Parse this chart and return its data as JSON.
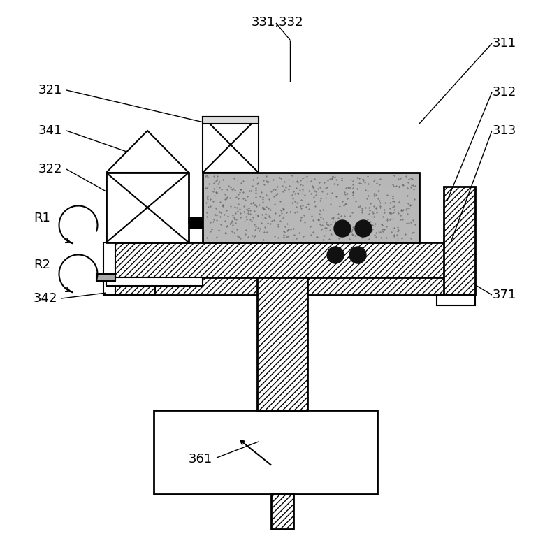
{
  "bg_color": "#ffffff",
  "figsize": [
    8.0,
    7.77
  ],
  "dpi": 100,
  "lw": 1.5,
  "lw2": 2.0,
  "gray_fill": "#b8b8b8",
  "hatch_fill": "white",
  "font_size": 13
}
